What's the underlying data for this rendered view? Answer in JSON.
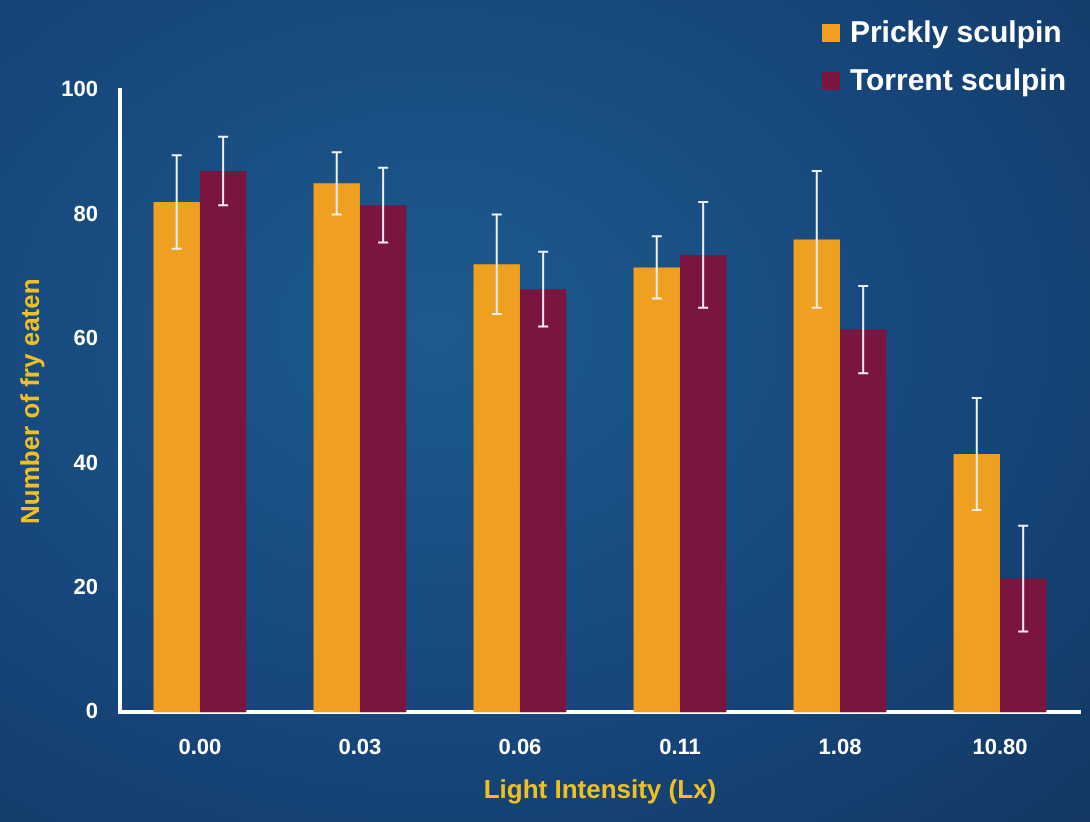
{
  "chart_data": {
    "type": "bar",
    "xlabel": "Light Intensity (Lx)",
    "ylabel": "Number of fry eaten",
    "categories": [
      "0.00",
      "0.03",
      "0.06",
      "0.11",
      "1.08",
      "10.80"
    ],
    "series": [
      {
        "name": "Prickly sculpin",
        "color": "#f0a020",
        "values": [
          82,
          85,
          72,
          71.5,
          76,
          41.5
        ],
        "errors": [
          7.5,
          5,
          8,
          5,
          11,
          9
        ]
      },
      {
        "name": "Torrent sculpin",
        "color": "#7a1540",
        "values": [
          87,
          81.5,
          68,
          73.5,
          61.5,
          21.5
        ],
        "errors": [
          5.5,
          6,
          6,
          8.5,
          7,
          8.5
        ]
      }
    ],
    "ylim": [
      0,
      100
    ],
    "yticks": [
      0,
      20,
      40,
      60,
      80,
      100
    ],
    "grid": false,
    "legend": "top right"
  }
}
